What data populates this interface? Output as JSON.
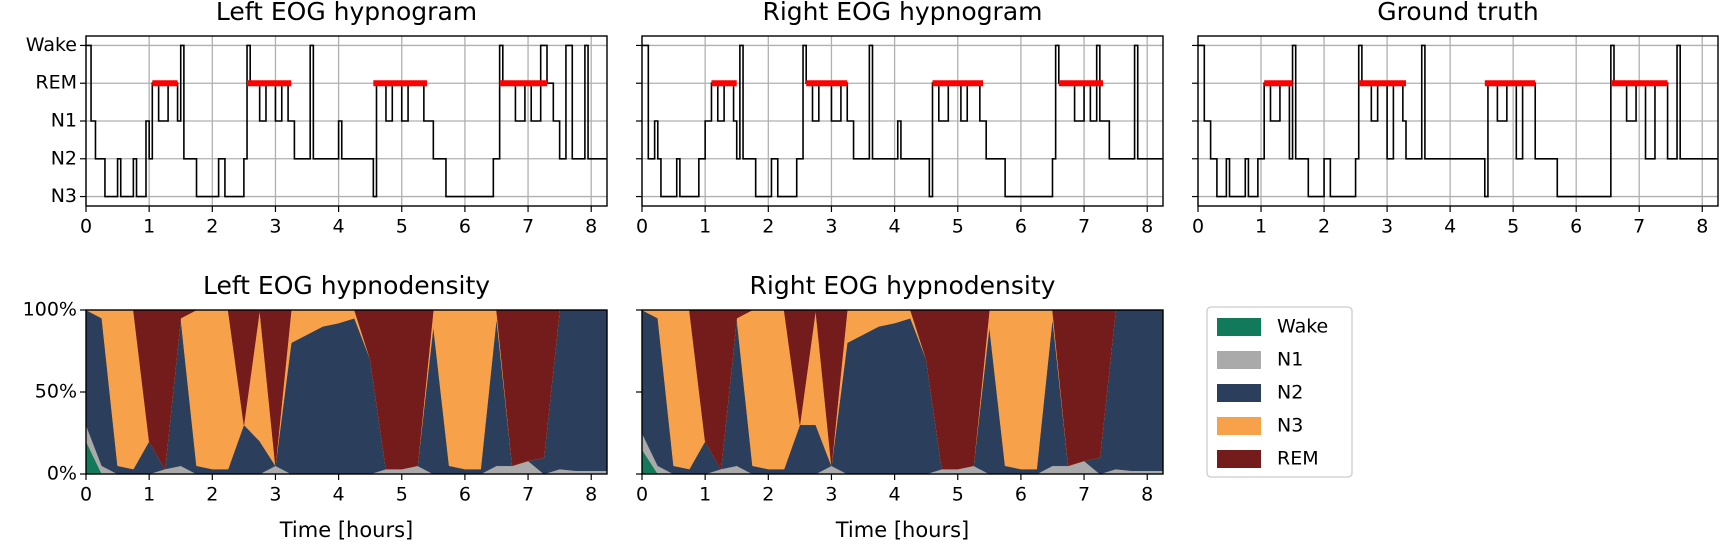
{
  "chart_data": [
    {
      "type": "step",
      "title": "Left EOG hypnogram",
      "color": "#000000",
      "grid": true,
      "y_categories": [
        "Wake",
        "REM",
        "N1",
        "N2",
        "N3"
      ],
      "x": [
        0,
        0.08,
        0.15,
        0.3,
        0.5,
        0.55,
        0.75,
        0.8,
        0.95,
        1.0,
        1.05,
        1.15,
        1.3,
        1.45,
        1.5,
        1.55,
        1.75,
        2.1,
        2.2,
        2.5,
        2.55,
        2.6,
        2.75,
        2.85,
        3.0,
        3.1,
        3.2,
        3.3,
        3.55,
        3.6,
        4.0,
        4.05,
        4.55,
        4.6,
        4.75,
        4.85,
        5.0,
        5.1,
        5.35,
        5.5,
        5.7,
        6.45,
        6.55,
        6.6,
        6.8,
        6.95,
        7.05,
        7.2,
        7.3,
        7.4,
        7.5,
        7.6,
        7.7,
        7.9,
        7.95,
        8.25
      ],
      "values": [
        "Wake",
        "N1",
        "N2",
        "N3",
        "N2",
        "N3",
        "N2",
        "N3",
        "N1",
        "N2",
        "REM",
        "N1",
        "REM",
        "N1",
        "Wake",
        "N2",
        "N3",
        "N2",
        "N3",
        "N2",
        "Wake",
        "REM",
        "N1",
        "REM",
        "N1",
        "REM",
        "N1",
        "N2",
        "Wake",
        "N2",
        "N1",
        "N2",
        "N3",
        "REM",
        "N1",
        "REM",
        "N1",
        "REM",
        "N1",
        "N2",
        "N3",
        "N2",
        "Wake",
        "REM",
        "N1",
        "REM",
        "N1",
        "Wake",
        "REM",
        "N1",
        "N2",
        "Wake",
        "N2",
        "Wake",
        "N2",
        "N2"
      ],
      "highlights": [
        [
          1.05,
          1.45
        ],
        [
          2.55,
          3.25
        ],
        [
          4.55,
          5.4
        ],
        [
          6.55,
          7.3
        ]
      ],
      "highlight_color": "#ff0000",
      "xlim": [
        0,
        8.25
      ],
      "xticks": [
        0,
        1,
        2,
        3,
        4,
        5,
        6,
        7,
        8
      ]
    },
    {
      "type": "step",
      "title": "Right EOG hypnogram",
      "color": "#000000",
      "grid": true,
      "sharey": 0,
      "x": [
        0,
        0.1,
        0.2,
        0.25,
        0.3,
        0.55,
        0.6,
        0.9,
        1.0,
        1.1,
        1.2,
        1.3,
        1.45,
        1.5,
        1.55,
        1.6,
        1.8,
        2.05,
        2.15,
        2.45,
        2.55,
        2.6,
        2.7,
        2.8,
        3.0,
        3.15,
        3.25,
        3.35,
        3.6,
        3.65,
        4.05,
        4.1,
        4.55,
        4.6,
        4.7,
        4.85,
        5.05,
        5.15,
        5.35,
        5.45,
        5.75,
        6.5,
        6.55,
        6.6,
        6.85,
        7.0,
        7.1,
        7.2,
        7.25,
        7.4,
        7.8,
        7.85,
        8.25
      ],
      "values": [
        "Wake",
        "N2",
        "N1",
        "N2",
        "N3",
        "N2",
        "N3",
        "N2",
        "N1",
        "REM",
        "N1",
        "REM",
        "N1",
        "N2",
        "Wake",
        "N2",
        "N3",
        "N2",
        "N3",
        "N2",
        "Wake",
        "REM",
        "N1",
        "REM",
        "N1",
        "REM",
        "N1",
        "N2",
        "Wake",
        "N2",
        "N1",
        "N2",
        "N3",
        "REM",
        "N1",
        "REM",
        "N1",
        "REM",
        "N1",
        "N2",
        "N3",
        "N2",
        "Wake",
        "REM",
        "N1",
        "REM",
        "N1",
        "Wake",
        "N1",
        "N2",
        "Wake",
        "N2",
        "N2"
      ],
      "highlights": [
        [
          1.1,
          1.5
        ],
        [
          2.6,
          3.25
        ],
        [
          4.6,
          5.4
        ],
        [
          6.6,
          7.3
        ]
      ],
      "highlight_color": "#ff0000",
      "xlim": [
        0,
        8.25
      ],
      "xticks": [
        0,
        1,
        2,
        3,
        4,
        5,
        6,
        7,
        8
      ]
    },
    {
      "type": "step",
      "title": "Ground truth",
      "color": "#000000",
      "grid": true,
      "sharey": 0,
      "x": [
        0,
        0.1,
        0.2,
        0.3,
        0.45,
        0.5,
        0.75,
        0.8,
        0.95,
        1.05,
        1.15,
        1.3,
        1.45,
        1.5,
        1.55,
        1.75,
        2.0,
        2.1,
        2.5,
        2.55,
        2.6,
        2.75,
        2.85,
        3.0,
        3.1,
        3.25,
        3.3,
        3.55,
        3.6,
        4.55,
        4.6,
        4.75,
        4.9,
        5.05,
        5.15,
        5.35,
        5.7,
        6.55,
        6.6,
        6.8,
        6.95,
        7.1,
        7.25,
        7.45,
        7.6,
        7.65,
        8.25
      ],
      "values": [
        "Wake",
        "N1",
        "N2",
        "N3",
        "N2",
        "N3",
        "N2",
        "N3",
        "N2",
        "REM",
        "N1",
        "REM",
        "N2",
        "Wake",
        "N2",
        "N3",
        "N2",
        "N3",
        "N2",
        "Wake",
        "REM",
        "N1",
        "REM",
        "N2",
        "REM",
        "N1",
        "N2",
        "Wake",
        "N2",
        "N3",
        "REM",
        "N1",
        "REM",
        "N2",
        "REM",
        "N2",
        "N3",
        "Wake",
        "REM",
        "N1",
        "REM",
        "N2",
        "REM",
        "N2",
        "Wake",
        "N2",
        "N2"
      ],
      "highlights": [
        [
          1.05,
          1.5
        ],
        [
          2.55,
          3.3
        ],
        [
          4.55,
          5.35
        ],
        [
          6.55,
          7.45
        ]
      ],
      "highlight_color": "#ff0000",
      "xlim": [
        0,
        8.25
      ],
      "xticks": [
        0,
        1,
        2,
        3,
        4,
        5,
        6,
        7,
        8
      ]
    },
    {
      "type": "stacked_area",
      "title": "Left EOG hypnodensity",
      "xlabel": "Time [hours]",
      "x": [
        0,
        0.25,
        0.5,
        0.75,
        1,
        1.25,
        1.5,
        1.75,
        2,
        2.25,
        2.5,
        2.75,
        3,
        3.25,
        3.5,
        3.75,
        4,
        4.25,
        4.5,
        4.75,
        5,
        5.25,
        5.5,
        5.75,
        6,
        6.25,
        6.5,
        6.75,
        7,
        7.25,
        7.5,
        7.75,
        8,
        8.25
      ],
      "series": [
        {
          "color": "#13795b",
          "values": [
            20,
            0,
            0,
            0,
            0,
            0,
            0,
            0,
            0,
            0,
            0,
            0,
            0,
            0,
            0,
            0,
            0,
            0,
            0,
            0,
            0,
            0,
            0,
            0,
            0,
            0,
            0,
            0,
            0,
            0,
            0,
            0,
            0,
            0
          ]
        },
        {
          "color": "#aaaaaa",
          "values": [
            10,
            5,
            0,
            0,
            0,
            3,
            5,
            0,
            0,
            0,
            0,
            0,
            5,
            0,
            0,
            0,
            0,
            0,
            0,
            3,
            3,
            5,
            0,
            0,
            0,
            0,
            5,
            5,
            8,
            0,
            3,
            2,
            2,
            2
          ]
        },
        {
          "color": "#2b3f5c",
          "values": [
            70,
            90,
            5,
            3,
            20,
            0,
            90,
            5,
            3,
            3,
            30,
            20,
            0,
            80,
            85,
            90,
            92,
            95,
            70,
            0,
            0,
            0,
            90,
            5,
            3,
            3,
            90,
            0,
            0,
            10,
            97,
            98,
            98,
            98
          ]
        },
        {
          "color": "#f7a24a",
          "values": [
            0,
            5,
            95,
            97,
            0,
            0,
            0,
            95,
            97,
            97,
            0,
            80,
            0,
            20,
            15,
            10,
            8,
            5,
            0,
            0,
            0,
            0,
            10,
            95,
            97,
            97,
            5,
            0,
            0,
            0,
            0,
            0,
            0,
            0
          ]
        },
        {
          "color": "#741b1b",
          "values": [
            0,
            0,
            0,
            0,
            80,
            97,
            5,
            0,
            0,
            0,
            70,
            0,
            95,
            0,
            0,
            0,
            0,
            0,
            30,
            97,
            97,
            95,
            0,
            0,
            0,
            0,
            0,
            95,
            92,
            90,
            0,
            0,
            0,
            0
          ]
        }
      ],
      "xlim": [
        0,
        8.25
      ],
      "xticks": [
        0,
        1,
        2,
        3,
        4,
        5,
        6,
        7,
        8
      ],
      "ylim": [
        0,
        100
      ],
      "yticks": [
        {
          "value": 0,
          "label": "0%"
        },
        {
          "value": 50,
          "label": "50%"
        },
        {
          "value": 100,
          "label": "100%"
        }
      ]
    },
    {
      "type": "stacked_area",
      "title": "Right EOG hypnodensity",
      "xlabel": "Time [hours]",
      "sharey": 3,
      "legend": "right",
      "x": [
        0,
        0.25,
        0.5,
        0.75,
        1,
        1.25,
        1.5,
        1.75,
        2,
        2.25,
        2.5,
        2.75,
        3,
        3.25,
        3.5,
        3.75,
        4,
        4.25,
        4.5,
        4.75,
        5,
        5.25,
        5.5,
        5.75,
        6,
        6.25,
        6.5,
        6.75,
        7,
        7.25,
        7.5,
        7.75,
        8,
        8.25
      ],
      "series": [
        {
          "name": "Wake",
          "color": "#13795b",
          "values": [
            15,
            0,
            0,
            0,
            0,
            0,
            0,
            0,
            0,
            0,
            0,
            0,
            0,
            0,
            0,
            0,
            0,
            0,
            0,
            0,
            0,
            0,
            0,
            0,
            0,
            0,
            0,
            0,
            0,
            0,
            0,
            0,
            0,
            0
          ]
        },
        {
          "name": "N1",
          "color": "#aaaaaa",
          "values": [
            10,
            5,
            0,
            0,
            0,
            3,
            5,
            0,
            0,
            0,
            0,
            0,
            5,
            0,
            0,
            0,
            0,
            0,
            0,
            3,
            3,
            5,
            0,
            0,
            0,
            0,
            5,
            5,
            8,
            0,
            3,
            2,
            2,
            2
          ]
        },
        {
          "name": "N2",
          "color": "#2b3f5c",
          "values": [
            75,
            90,
            5,
            3,
            20,
            0,
            90,
            5,
            3,
            3,
            30,
            30,
            0,
            80,
            85,
            90,
            92,
            95,
            70,
            0,
            0,
            0,
            90,
            5,
            3,
            3,
            90,
            0,
            0,
            10,
            97,
            98,
            98,
            98
          ]
        },
        {
          "name": "N3",
          "color": "#f7a24a",
          "values": [
            0,
            5,
            95,
            97,
            0,
            0,
            0,
            95,
            97,
            97,
            0,
            70,
            0,
            20,
            15,
            10,
            8,
            5,
            0,
            0,
            0,
            0,
            10,
            95,
            97,
            97,
            5,
            0,
            0,
            0,
            0,
            0,
            0,
            0
          ]
        },
        {
          "name": "REM",
          "color": "#741b1b",
          "values": [
            0,
            0,
            0,
            0,
            80,
            97,
            5,
            0,
            0,
            0,
            70,
            0,
            95,
            0,
            0,
            0,
            0,
            0,
            30,
            97,
            97,
            95,
            0,
            0,
            0,
            0,
            0,
            95,
            92,
            90,
            0,
            0,
            0,
            0
          ]
        }
      ],
      "xlim": [
        0,
        8.25
      ],
      "xticks": [
        0,
        1,
        2,
        3,
        4,
        5,
        6,
        7,
        8
      ]
    }
  ]
}
